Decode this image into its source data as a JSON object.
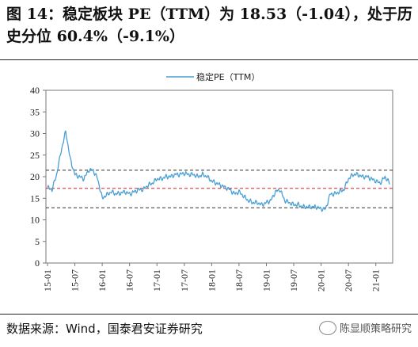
{
  "header": {
    "title": "图 14：稳定板块 PE（TTM）为 18.53（-1.04），处于历史分位 60.4%（-9.1%）"
  },
  "footer": {
    "source": "数据来源：Wind，国泰君安证券研究",
    "watermark": "陈显顺策略研究",
    "watermark_icon": "wechat-icon"
  },
  "chart_data": {
    "type": "line",
    "title": "",
    "xlabel": "",
    "ylabel": "",
    "ylim": [
      0,
      40
    ],
    "yticks": [
      "0",
      "5",
      "10",
      "15",
      "20",
      "25",
      "30",
      "35",
      "40"
    ],
    "xticks": [
      "15-01",
      "15-07",
      "16-01",
      "16-07",
      "17-01",
      "17-07",
      "18-01",
      "18-07",
      "19-01",
      "19-07",
      "20-01",
      "20-07",
      "21-01"
    ],
    "grid": false,
    "legend_position": "top-center",
    "series": [
      {
        "name": "稳定PE（TTM）",
        "color": "#4a9fd4",
        "x": [
          "15-01",
          "15-02",
          "15-03",
          "15-04",
          "15-05",
          "15-06",
          "15-07",
          "15-08",
          "15-09",
          "15-10",
          "15-11",
          "15-12",
          "16-01",
          "16-02",
          "16-03",
          "16-04",
          "16-05",
          "16-06",
          "16-07",
          "16-08",
          "16-09",
          "16-10",
          "16-11",
          "16-12",
          "17-01",
          "17-02",
          "17-03",
          "17-04",
          "17-05",
          "17-06",
          "17-07",
          "17-08",
          "17-09",
          "17-10",
          "17-11",
          "17-12",
          "18-01",
          "18-02",
          "18-03",
          "18-04",
          "18-05",
          "18-06",
          "18-07",
          "18-08",
          "18-09",
          "18-10",
          "18-11",
          "18-12",
          "19-01",
          "19-02",
          "19-03",
          "19-04",
          "19-05",
          "19-06",
          "19-07",
          "19-08",
          "19-09",
          "19-10",
          "19-11",
          "19-12",
          "20-01",
          "20-02",
          "20-03",
          "20-04",
          "20-05",
          "20-06",
          "20-07",
          "20-08",
          "20-09",
          "20-10",
          "20-11",
          "20-12",
          "21-01",
          "21-02",
          "21-03",
          "21-04"
        ],
        "values": [
          17.5,
          17.0,
          20.5,
          26.0,
          30.5,
          24.0,
          20.5,
          20.0,
          19.5,
          21.5,
          21.5,
          19.5,
          15.0,
          15.8,
          16.5,
          16.0,
          16.2,
          16.5,
          16.0,
          16.5,
          17.0,
          17.0,
          18.0,
          18.5,
          19.5,
          19.5,
          20.0,
          20.0,
          20.5,
          20.5,
          20.8,
          20.5,
          20.5,
          20.0,
          20.5,
          20.0,
          19.0,
          18.5,
          18.0,
          17.5,
          17.0,
          16.0,
          16.5,
          15.5,
          14.5,
          14.0,
          14.0,
          13.5,
          14.0,
          14.5,
          16.5,
          17.0,
          14.5,
          14.0,
          13.5,
          13.5,
          13.0,
          13.0,
          13.0,
          13.0,
          12.5,
          12.5,
          16.0,
          16.0,
          16.5,
          17.0,
          19.5,
          20.5,
          20.5,
          20.0,
          20.0,
          19.5,
          19.0,
          18.5,
          20.0,
          18.5
        ]
      }
    ],
    "reference_lines": [
      {
        "value": 21.5,
        "color": "#333333",
        "style": "dashed"
      },
      {
        "value": 17.3,
        "color": "#e02020",
        "style": "dashed"
      },
      {
        "value": 12.8,
        "color": "#333333",
        "style": "dashed"
      }
    ]
  }
}
